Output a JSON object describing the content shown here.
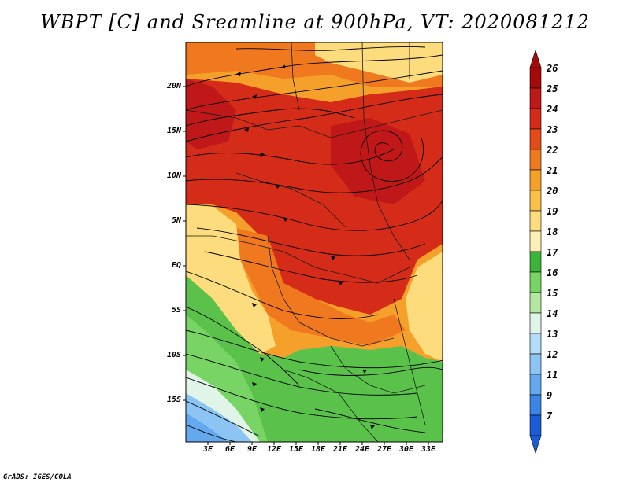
{
  "title": "WBPT [C] and Sreamline at 900hPa, VT: 2020081212",
  "credit": "GrADS: IGES/COLA",
  "lat_labels": [
    "20N",
    "15N",
    "10N",
    "5N",
    "EQ",
    "5S",
    "10S",
    "15S"
  ],
  "lon_labels": [
    "3E",
    "6E",
    "9E",
    "12E",
    "15E",
    "18E",
    "21E",
    "24E",
    "27E",
    "30E",
    "33E"
  ],
  "colorbar": {
    "labels": [
      "26",
      "25",
      "24",
      "23",
      "22",
      "21",
      "20",
      "19",
      "18",
      "17",
      "16",
      "15",
      "14",
      "13",
      "12",
      "11",
      "9",
      "7"
    ],
    "colors": [
      "#a50a0a",
      "#c01818",
      "#d42c18",
      "#e54a18",
      "#f0781e",
      "#f5a02a",
      "#fac04a",
      "#fcdc7c",
      "#fcf0b4",
      "#3cb43c",
      "#78d464",
      "#b4e8a0",
      "#e0f4e8",
      "#b4dcf8",
      "#8cc4f4",
      "#64a8ee",
      "#3c84e6",
      "#1a5cd8"
    ]
  },
  "colors": {
    "hot": "#d42c18",
    "warm": "#f0781e",
    "pale": "#fcdc7c",
    "green": "#5ac24a",
    "blue": "#64a8ee"
  }
}
